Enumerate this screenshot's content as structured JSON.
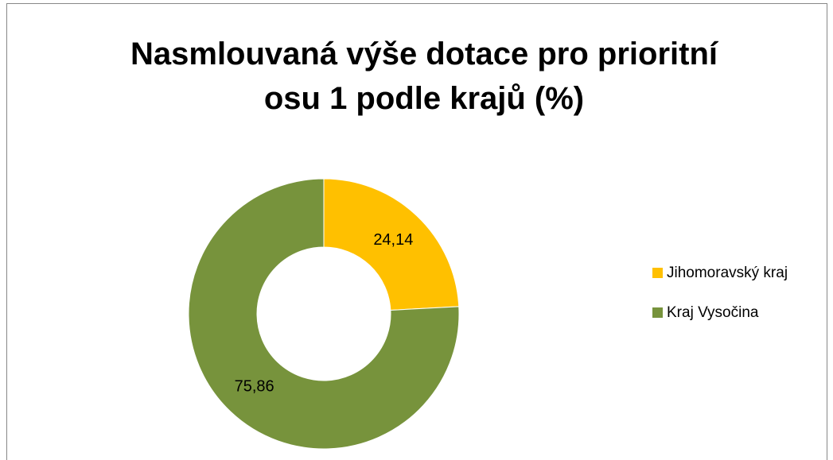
{
  "chart_data": {
    "type": "donut",
    "title": "Nasmlouvaná výše dotace pro prioritní osu 1 podle krajů (%)",
    "categories": [
      "Jihomoravský kraj",
      "Kraj Vysočina"
    ],
    "values": [
      24.14,
      75.86
    ],
    "value_labels": [
      "24,14",
      "75,86"
    ],
    "colors": [
      "#ffc000",
      "#77933c"
    ],
    "legend": "right"
  }
}
